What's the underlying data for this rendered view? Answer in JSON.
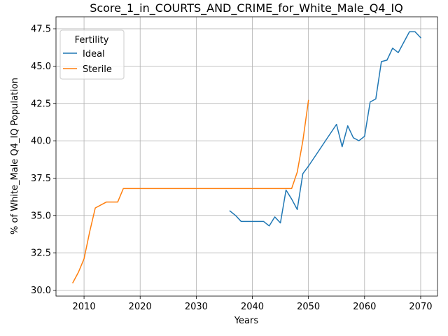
{
  "chart_data": {
    "type": "line",
    "title": "Score_1_in_COURTS_AND_CRIME_for_White_Male_Q4_IQ",
    "xlabel": "Years",
    "ylabel": "% of White_Male Q4_IQ Population",
    "xlim": [
      2005,
      2073
    ],
    "ylim": [
      29.6,
      48.3
    ],
    "xticks": [
      "2010",
      "2020",
      "2030",
      "2040",
      "2050",
      "2060",
      "2070"
    ],
    "yticks": [
      "30.0",
      "32.5",
      "35.0",
      "37.5",
      "40.0",
      "42.5",
      "45.0",
      "47.5"
    ],
    "grid": true,
    "legend": {
      "title": "Fertility",
      "placement": "upper-left"
    },
    "series": [
      {
        "name": "Ideal",
        "color": "#1f77b4",
        "points": [
          [
            2036,
            35.3
          ],
          [
            2037,
            35.0
          ],
          [
            2038,
            34.6
          ],
          [
            2039,
            34.6
          ],
          [
            2040,
            34.6
          ],
          [
            2041,
            34.6
          ],
          [
            2042,
            34.6
          ],
          [
            2043,
            34.3
          ],
          [
            2044,
            34.9
          ],
          [
            2045,
            34.5
          ],
          [
            2046,
            36.7
          ],
          [
            2047,
            36.1
          ],
          [
            2048,
            35.4
          ],
          [
            2049,
            37.8
          ],
          [
            2050,
            38.3
          ],
          [
            2055,
            41.1
          ],
          [
            2056,
            39.6
          ],
          [
            2057,
            41.0
          ],
          [
            2058,
            40.2
          ],
          [
            2059,
            40.0
          ],
          [
            2060,
            40.3
          ],
          [
            2061,
            42.6
          ],
          [
            2062,
            42.8
          ],
          [
            2063,
            45.3
          ],
          [
            2064,
            45.4
          ],
          [
            2065,
            46.2
          ],
          [
            2066,
            45.9
          ],
          [
            2067,
            46.6
          ],
          [
            2068,
            47.3
          ],
          [
            2069,
            47.3
          ],
          [
            2070,
            46.9
          ]
        ]
      },
      {
        "name": "Sterile",
        "color": "#ff7f0e",
        "points": [
          [
            2008,
            30.5
          ],
          [
            2009,
            31.2
          ],
          [
            2010,
            32.1
          ],
          [
            2011,
            33.9
          ],
          [
            2012,
            35.5
          ],
          [
            2013,
            35.7
          ],
          [
            2014,
            35.9
          ],
          [
            2015,
            35.9
          ],
          [
            2016,
            35.9
          ],
          [
            2017,
            36.8
          ],
          [
            2047,
            36.8
          ],
          [
            2048,
            37.9
          ],
          [
            2049,
            40.0
          ],
          [
            2050,
            42.7
          ]
        ]
      }
    ]
  }
}
